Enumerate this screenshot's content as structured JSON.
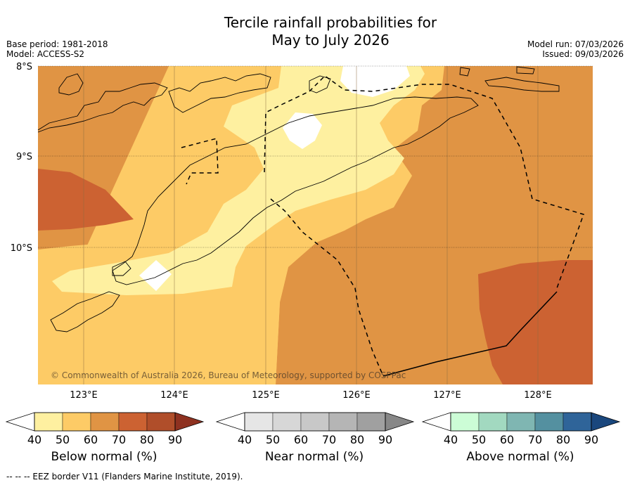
{
  "title_line1": "Tercile rainfall probabilities for",
  "title_line2": "May to July 2026",
  "base_period": "Base period: 1981-2018",
  "model": "Model: ACCESS-S2",
  "model_run": "Model run: 07/03/2026",
  "issued": "Issued: 09/03/2026",
  "map": {
    "lat_labels": [
      "8°S",
      "9°S",
      "10°S"
    ],
    "lon_labels": [
      "123°E",
      "124°E",
      "125°E",
      "126°E",
      "127°E",
      "128°E"
    ],
    "copyright": "© Commonwealth of Australia 2026, Bureau of Meteorology, supported by COSPPac",
    "colors": {
      "below_40": "#ffffff",
      "below_50": "#fef0a0",
      "below_60": "#fdcb66",
      "below_70": "#e09444",
      "below_80": "#cc6232",
      "ocean_line": "#000000"
    }
  },
  "colorbars": [
    {
      "label": "Below normal (%)",
      "ticks": [
        "40",
        "50",
        "60",
        "70",
        "80",
        "90"
      ],
      "colors": [
        "#ffffff",
        "#fef0a0",
        "#fdcb66",
        "#e09444",
        "#cc6232",
        "#b04e2a",
        "#8e3120"
      ]
    },
    {
      "label": "Near normal (%)",
      "ticks": [
        "40",
        "50",
        "60",
        "70",
        "80",
        "90"
      ],
      "colors": [
        "#ffffff",
        "#e6e6e6",
        "#d7d7d7",
        "#c8c8c8",
        "#b5b5b5",
        "#a0a0a0",
        "#878787"
      ]
    },
    {
      "label": "Above normal (%)",
      "ticks": [
        "40",
        "50",
        "60",
        "70",
        "80",
        "90"
      ],
      "colors": [
        "#ffffff",
        "#ccfdd6",
        "#a2d9c0",
        "#7fb6b2",
        "#5490a0",
        "#2f6499",
        "#1a477d"
      ]
    }
  ],
  "footer": "--  --  -- EEZ border V11 (Flanders Marine Institute, 2019)."
}
